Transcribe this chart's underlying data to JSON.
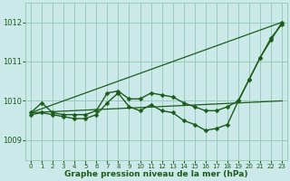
{
  "background_color": "#cce9e9",
  "grid_color": "#99ccbb",
  "line_color": "#1a5c1a",
  "marker_color": "#1a5c1a",
  "xlabel": "Graphe pression niveau de la mer (hPa)",
  "xlabel_color": "#1a5c1a",
  "ylim": [
    1008.5,
    1012.5
  ],
  "xlim": [
    -0.5,
    23.5
  ],
  "yticks": [
    1009,
    1010,
    1011,
    1012
  ],
  "xticks": [
    0,
    1,
    2,
    3,
    4,
    5,
    6,
    7,
    8,
    9,
    10,
    11,
    12,
    13,
    14,
    15,
    16,
    17,
    18,
    19,
    20,
    21,
    22,
    23
  ],
  "series": [
    {
      "x": [
        0,
        23
      ],
      "y": [
        1009.7,
        1012.0
      ],
      "has_marker": false,
      "linewidth": 0.9
    },
    {
      "x": [
        0,
        23
      ],
      "y": [
        1009.7,
        1010.0
      ],
      "has_marker": false,
      "linewidth": 0.9
    },
    {
      "x": [
        0,
        1,
        2,
        3,
        4,
        5,
        6,
        7,
        8,
        9,
        10,
        11,
        12,
        13,
        14,
        15,
        16,
        17,
        18,
        19,
        20,
        21,
        22,
        23
      ],
      "y": [
        1009.7,
        1009.95,
        1009.7,
        1009.65,
        1009.65,
        1009.65,
        1009.75,
        1010.2,
        1010.25,
        1010.05,
        1010.05,
        1010.2,
        1010.15,
        1010.1,
        1009.95,
        1009.85,
        1009.75,
        1009.75,
        1009.85,
        1010.0,
        1010.55,
        1011.1,
        1011.55,
        1012.0
      ],
      "has_marker": true,
      "linewidth": 1.0,
      "markersize": 2.5
    },
    {
      "x": [
        0,
        1,
        2,
        3,
        4,
        5,
        6,
        7,
        8,
        9,
        10,
        11,
        12,
        13,
        14,
        15,
        16,
        17,
        18,
        19,
        20,
        21,
        22,
        23
      ],
      "y": [
        1009.65,
        1009.7,
        1009.65,
        1009.6,
        1009.55,
        1009.55,
        1009.65,
        1009.95,
        1010.2,
        1009.85,
        1009.75,
        1009.9,
        1009.75,
        1009.7,
        1009.5,
        1009.4,
        1009.25,
        1009.3,
        1009.4,
        1010.0,
        1010.55,
        1011.1,
        1011.6,
        1011.95
      ],
      "has_marker": true,
      "linewidth": 1.0,
      "markersize": 2.5
    }
  ]
}
